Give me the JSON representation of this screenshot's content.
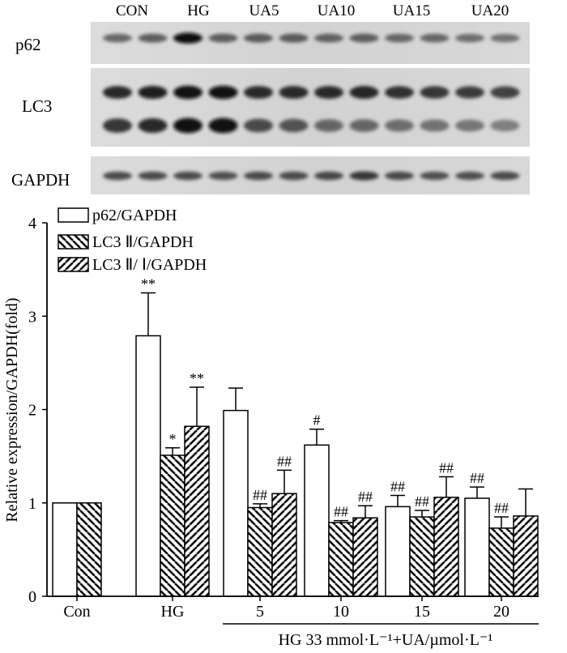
{
  "blot": {
    "lane_groups": [
      "CON",
      "HG",
      "UA5",
      "UA10",
      "UA15",
      "UA20"
    ],
    "rows": [
      {
        "label": "p62",
        "bands": [
          0.55,
          0.6,
          1.0,
          0.6,
          0.62,
          0.62,
          0.58,
          0.6,
          0.55,
          0.55,
          0.5,
          0.48
        ]
      },
      {
        "label": "LC3",
        "bands": [
          0.85,
          0.9,
          0.95,
          0.95,
          0.85,
          0.85,
          0.85,
          0.88,
          0.82,
          0.8,
          0.78,
          0.75
        ],
        "bands2": [
          0.8,
          0.85,
          0.95,
          0.95,
          0.7,
          0.65,
          0.55,
          0.55,
          0.5,
          0.48,
          0.45,
          0.4
        ]
      },
      {
        "label": "GAPDH",
        "bands": [
          0.7,
          0.7,
          0.7,
          0.68,
          0.7,
          0.7,
          0.72,
          0.8,
          0.7,
          0.68,
          0.68,
          0.7
        ]
      }
    ]
  },
  "chart_data": {
    "type": "bar",
    "categories": [
      "Con",
      "HG",
      "5",
      "10",
      "15",
      "20"
    ],
    "ylabel": "Relative expression/GAPDH(fold)",
    "xlabel": "HG 33 mmol·L⁻¹+UA/µmol·L⁻¹",
    "ylim": [
      0,
      4
    ],
    "yticks": [
      "0",
      "1",
      "2",
      "3",
      "4"
    ],
    "legend_position": "top-left",
    "series": [
      {
        "name": "p62/GAPDH",
        "pattern": "white",
        "values": [
          1.0,
          2.79,
          1.99,
          1.62,
          0.96,
          1.05
        ],
        "errors": [
          null,
          0.46,
          0.24,
          0.17,
          0.12,
          0.12
        ],
        "annotations": [
          "",
          "**",
          "",
          "#",
          "##",
          "##"
        ]
      },
      {
        "name": "LC3 Ⅱ/GAPDH",
        "pattern": "back-diagonal",
        "values": [
          1.0,
          1.51,
          0.95,
          0.79,
          0.85,
          0.73
        ],
        "errors": [
          null,
          0.08,
          0.04,
          0.02,
          0.07,
          0.12
        ],
        "annotations": [
          "",
          "*",
          "##",
          "##",
          "##",
          "##"
        ]
      },
      {
        "name": "LC3 Ⅱ/ Ⅰ/GAPDH",
        "pattern": "forward-diagonal",
        "values": [
          1.0,
          1.82,
          1.1,
          0.84,
          1.06,
          0.86
        ],
        "errors": [
          null,
          0.42,
          0.25,
          0.13,
          0.22,
          0.29
        ],
        "annotations": [
          "",
          "**",
          "##",
          "##",
          "##",
          ""
        ]
      }
    ]
  }
}
